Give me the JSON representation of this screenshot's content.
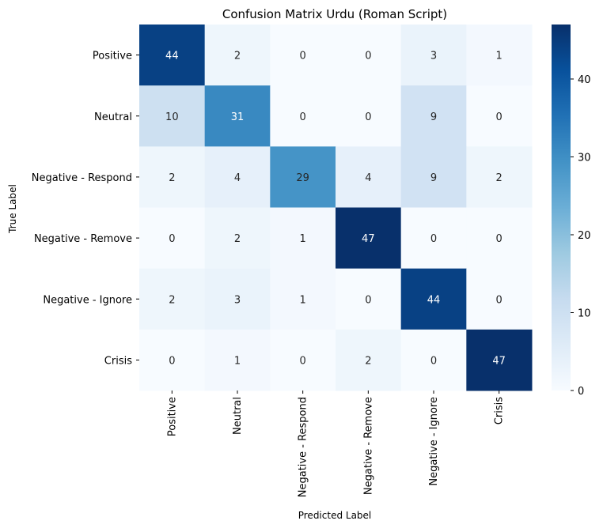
{
  "chart_data": {
    "type": "heatmap",
    "title": "Confusion Matrix Urdu (Roman Script)",
    "xlabel": "Predicted Label",
    "ylabel": "True Label",
    "x_categories": [
      "Positive",
      "Neutral",
      "Negative - Respond",
      "Negative - Remove",
      "Negative - Ignore",
      "Crisis"
    ],
    "y_categories": [
      "Positive",
      "Neutral",
      "Negative - Respond",
      "Negative - Remove",
      "Negative - Ignore",
      "Crisis"
    ],
    "values": [
      [
        44,
        2,
        0,
        0,
        3,
        1
      ],
      [
        10,
        31,
        0,
        0,
        9,
        0
      ],
      [
        2,
        4,
        29,
        4,
        9,
        2
      ],
      [
        0,
        2,
        1,
        47,
        0,
        0
      ],
      [
        2,
        3,
        1,
        0,
        44,
        0
      ],
      [
        0,
        1,
        0,
        2,
        0,
        47
      ]
    ],
    "colorbar": {
      "colormap": "Blues",
      "min": 0,
      "max": 47,
      "ticks": [
        0,
        10,
        20,
        30,
        40
      ],
      "tick_labels": [
        "0",
        "10",
        "20",
        "30",
        "40"
      ]
    },
    "grid": false,
    "annotations": true
  }
}
